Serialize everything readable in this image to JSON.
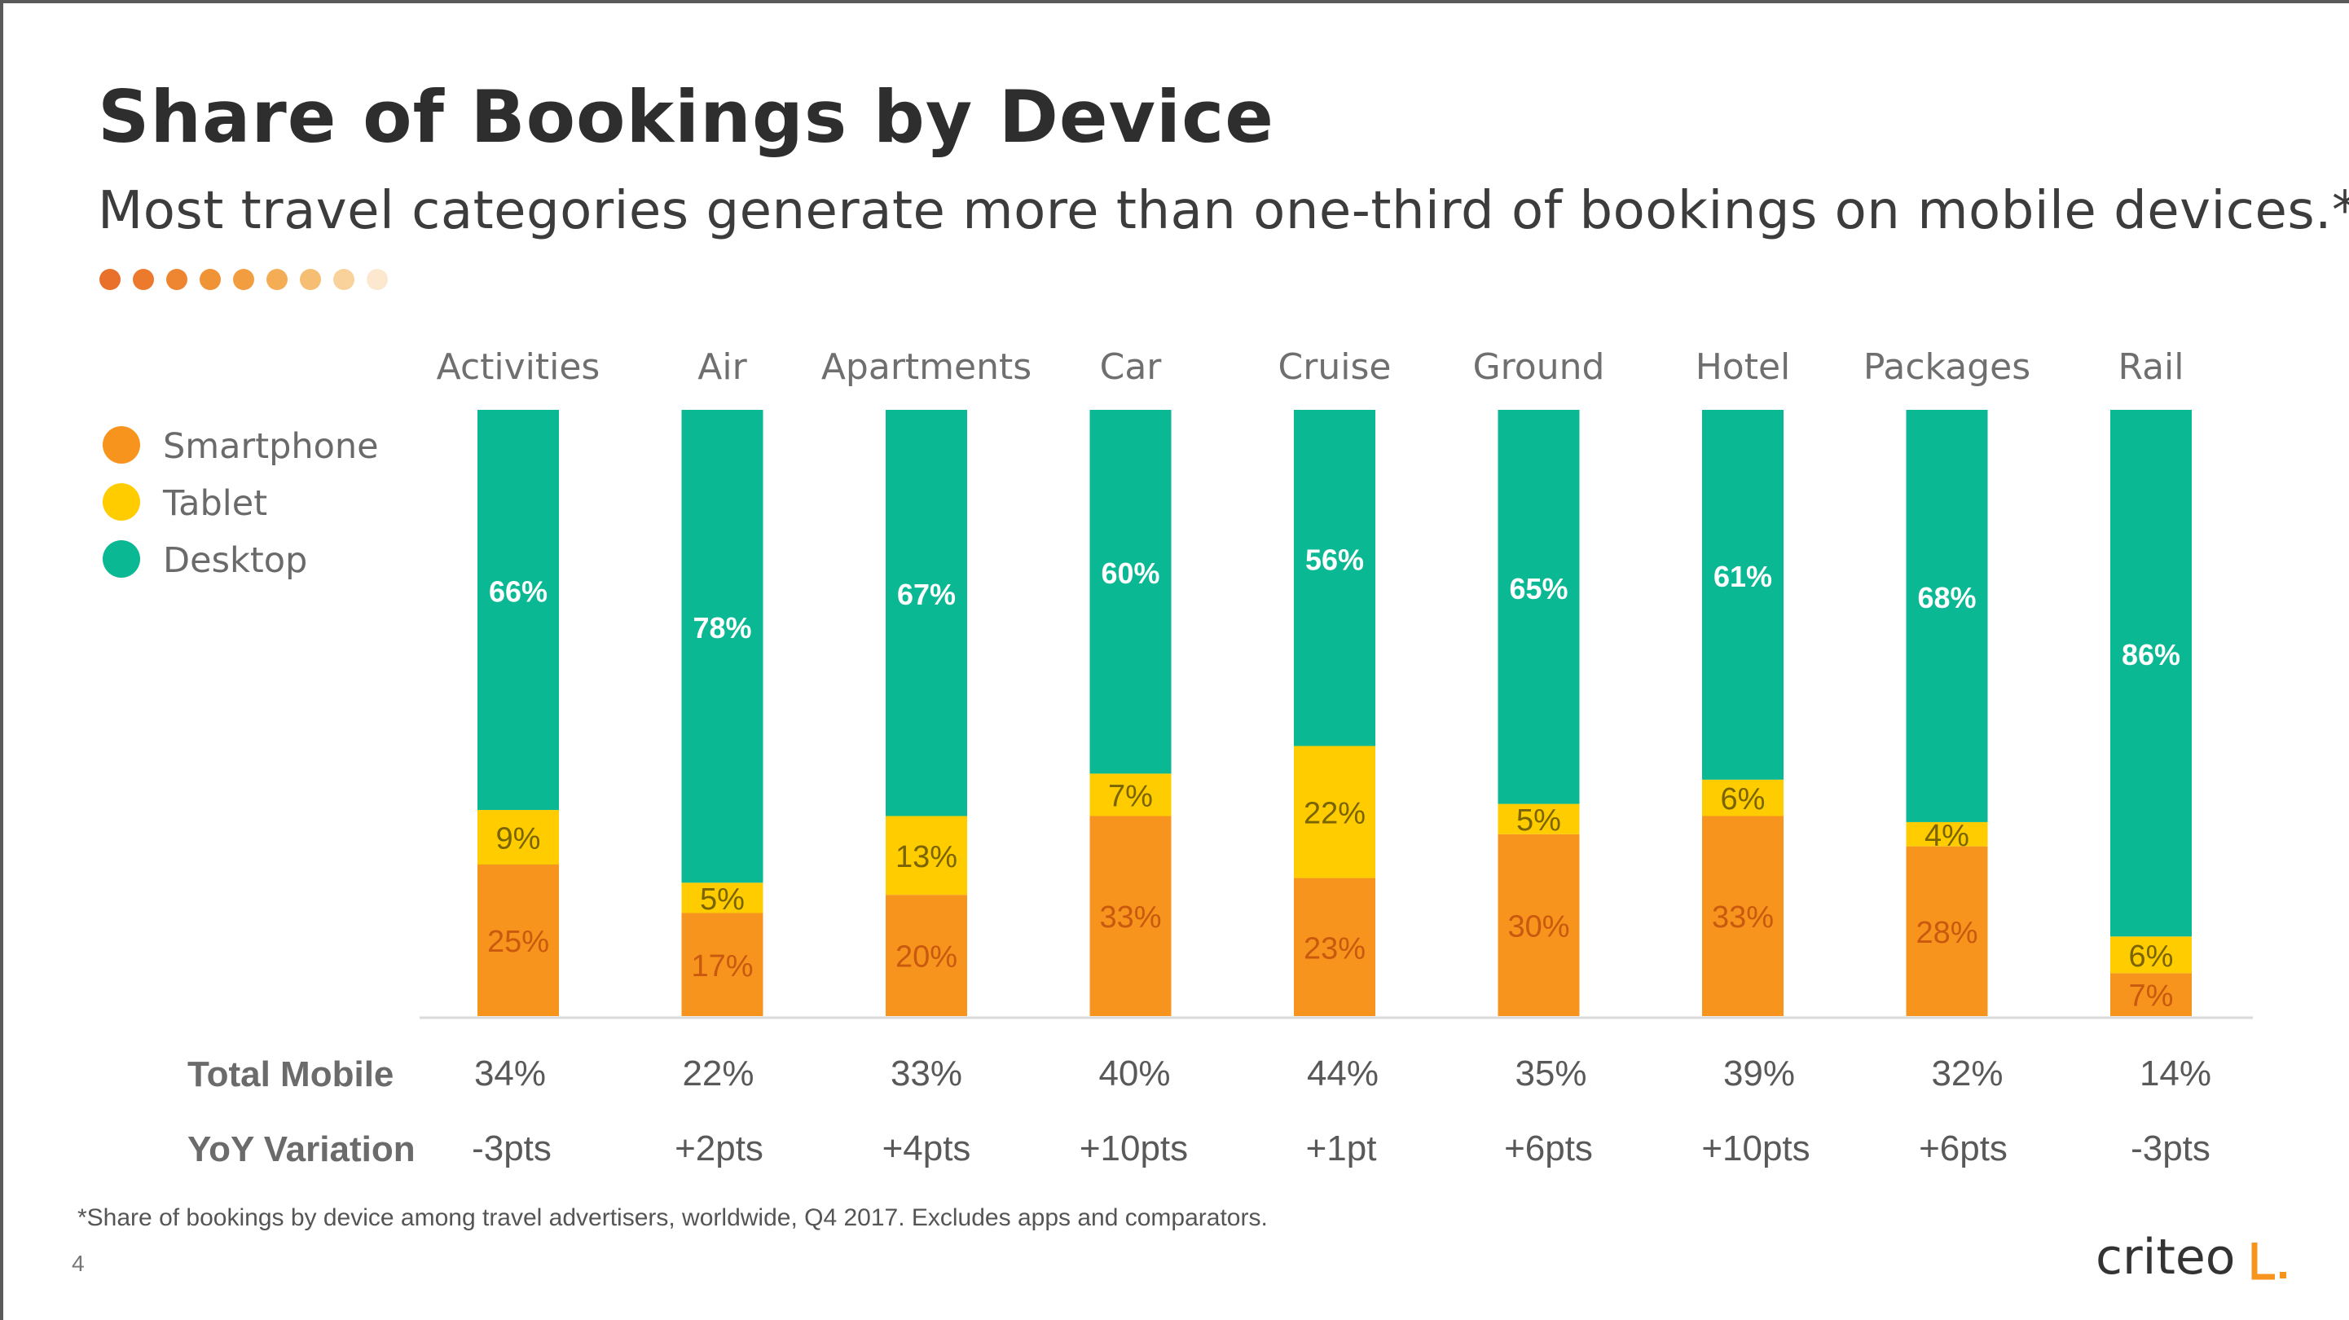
{
  "title": "Share of Bookings by Device",
  "subtitle": "Most travel categories generate more than one-third of bookings on mobile devices.*",
  "legend": [
    {
      "label": "Smartphone",
      "color": "#F7941D"
    },
    {
      "label": "Tablet",
      "color": "#FFCC00"
    },
    {
      "label": "Desktop",
      "color": "#0AB894"
    }
  ],
  "row_labels": {
    "total_mobile": "Total Mobile",
    "yoy": "YoY Variation"
  },
  "chart_data": {
    "type": "bar",
    "stacked": true,
    "categories": [
      "Activities",
      "Air",
      "Apartments",
      "Car",
      "Cruise",
      "Ground",
      "Hotel",
      "Packages",
      "Rail"
    ],
    "series": [
      {
        "name": "Smartphone",
        "values": [
          25,
          17,
          20,
          33,
          23,
          30,
          33,
          28,
          7
        ],
        "labels": [
          "25%",
          "17%",
          "20%",
          "33%",
          "23%",
          "30%",
          "33%",
          "28%",
          "7%"
        ]
      },
      {
        "name": "Tablet",
        "values": [
          9,
          5,
          13,
          7,
          22,
          5,
          6,
          4,
          6
        ],
        "labels": [
          "9%",
          "5%",
          "13%",
          "7%",
          "22%",
          "5%",
          "6%",
          "4%",
          "6%"
        ]
      },
      {
        "name": "Desktop",
        "values": [
          66,
          78,
          67,
          60,
          56,
          65,
          61,
          68,
          86
        ],
        "labels": [
          "66%",
          "78%",
          "67%",
          "60%",
          "56%",
          "65%",
          "61%",
          "68%",
          "86%"
        ]
      }
    ],
    "total_mobile": [
      "34%",
      "22%",
      "33%",
      "40%",
      "44%",
      "35%",
      "39%",
      "32%",
      "14%"
    ],
    "yoy_variation": [
      "-3pts",
      "+2pts",
      "+4pts",
      "+10pts",
      "+1pt",
      "+6pts",
      "+10pts",
      "+6pts",
      "-3pts"
    ],
    "legend_position": "left",
    "grid": false
  },
  "footnote": "*Share of bookings by device among travel advertisers, worldwide, Q4 2017. Excludes apps and comparators.",
  "page_number": "4",
  "logo_text": "criteo"
}
